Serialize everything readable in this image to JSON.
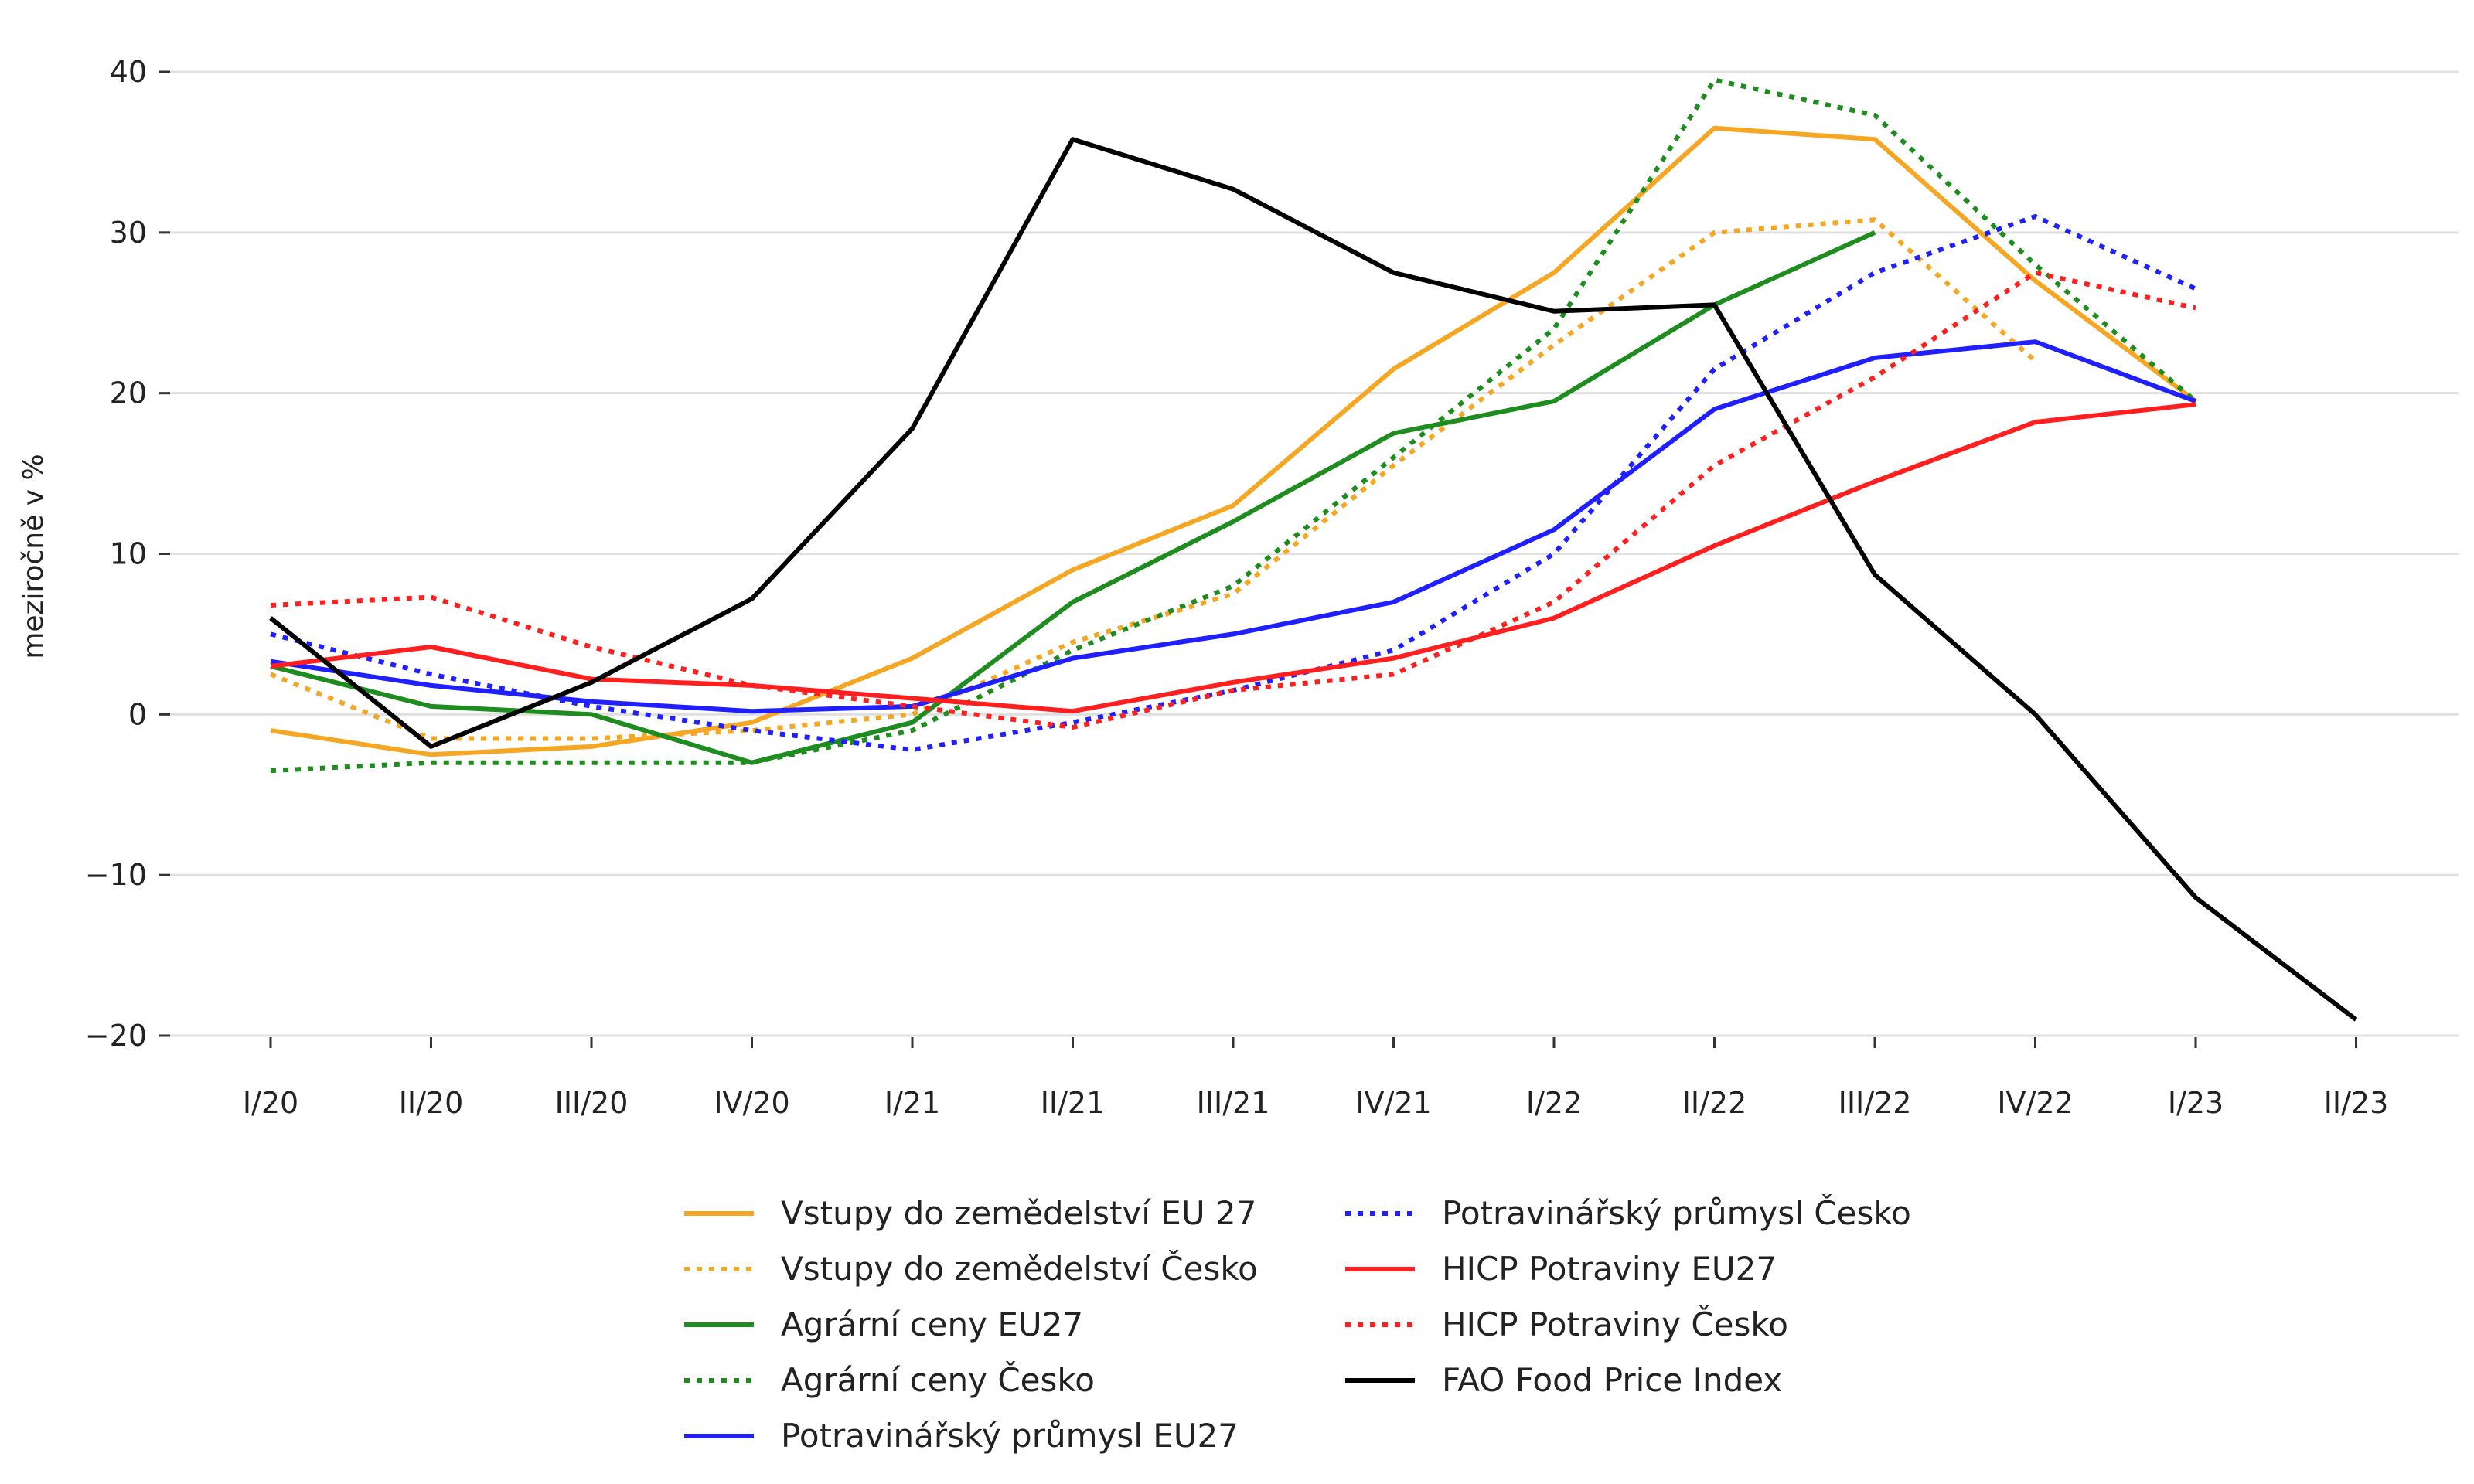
{
  "chart_data": {
    "type": "line",
    "title": "",
    "xlabel": "",
    "ylabel": "meziročně v %",
    "ylim": [
      -20,
      40
    ],
    "yticks": [
      -20,
      -10,
      0,
      10,
      20,
      30,
      40
    ],
    "ytick_labels": [
      "−20",
      "−10",
      "0",
      "10",
      "20",
      "30",
      "40"
    ],
    "grid": "horizontal",
    "legend_position": "bottom-center",
    "categories": [
      "I/20",
      "II/20",
      "III/20",
      "IV/20",
      "I/21",
      "II/21",
      "III/21",
      "IV/21",
      "I/22",
      "II/22",
      "III/22",
      "IV/22",
      "I/23",
      "II/23"
    ],
    "series": [
      {
        "name": "Vstupy do zemědelství EU 27",
        "color": "#f5a623",
        "style": "solid",
        "values": [
          -1,
          -2.5,
          -2,
          -0.5,
          3.5,
          9,
          13,
          21.5,
          27.5,
          36.5,
          35.8,
          27,
          19.5,
          null
        ]
      },
      {
        "name": "Vstupy do zemědelství Česko",
        "color": "#f5a623",
        "style": "dotted",
        "values": [
          2.5,
          -1.5,
          -1.5,
          -1,
          0,
          4.5,
          7.5,
          15.5,
          23,
          30,
          30.8,
          22,
          null,
          null
        ]
      },
      {
        "name": "Agrární ceny EU27",
        "color": "#1e8c1e",
        "style": "solid",
        "values": [
          3,
          0.5,
          0,
          -3,
          -0.5,
          7,
          12,
          17.5,
          19.5,
          25.5,
          30,
          null,
          null,
          null
        ]
      },
      {
        "name": "Agrární ceny Česko",
        "color": "#1e8c1e",
        "style": "dotted",
        "values": [
          -3.5,
          -3,
          -3,
          -3,
          -1,
          4,
          8,
          16,
          24,
          39.5,
          37.3,
          28,
          19.5,
          null
        ]
      },
      {
        "name": "Potravinářský průmysl EU27",
        "color": "#1f1fff",
        "style": "solid",
        "values": [
          3.3,
          1.8,
          0.8,
          0.2,
          0.5,
          3.5,
          5,
          7,
          11.5,
          19,
          22.2,
          23.2,
          19.5,
          null
        ]
      },
      {
        "name": "Potravinářský průmysl Česko",
        "color": "#1f1fff",
        "style": "dotted",
        "values": [
          5,
          2.5,
          0.5,
          -1,
          -2.2,
          -0.5,
          1.5,
          4,
          10,
          21.5,
          27.5,
          31,
          26.5,
          null
        ]
      },
      {
        "name": "HICP Potraviny EU27",
        "color": "#ff1f1f",
        "style": "solid",
        "values": [
          3,
          4.2,
          2.2,
          1.8,
          1,
          0.2,
          2,
          3.5,
          6,
          10.5,
          14.5,
          18.2,
          19.3,
          null
        ]
      },
      {
        "name": "HICP Potraviny Česko",
        "color": "#ff1f1f",
        "style": "dotted",
        "values": [
          6.8,
          7.3,
          4.2,
          1.8,
          0.5,
          -0.8,
          1.5,
          2.5,
          7,
          15.5,
          21,
          27.5,
          25.3,
          null
        ]
      },
      {
        "name": "FAO Food Price Index",
        "color": "#000000",
        "style": "solid",
        "values": [
          6,
          -2,
          2,
          7.2,
          17.8,
          35.8,
          32.7,
          27.5,
          25.1,
          25.5,
          8.7,
          0,
          -11.4,
          -19
        ]
      }
    ]
  }
}
